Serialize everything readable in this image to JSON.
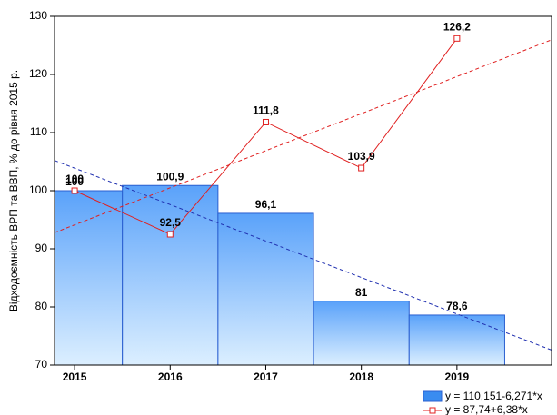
{
  "chart_data": {
    "type": "bar-line",
    "y_label": "Відходоємність ВРП та ВВП, % до рівня 2015 р.",
    "x": [
      2015,
      2016,
      2017,
      2018,
      2019
    ],
    "xlim": [
      2014.79,
      2019.99
    ],
    "xticks": [
      2015,
      2016,
      2017,
      2018,
      2019
    ],
    "ylim": [
      70,
      130
    ],
    "yticks": [
      70,
      80,
      90,
      100,
      110,
      120,
      130
    ],
    "series": [
      {
        "name": "bars",
        "kind": "bar",
        "color": "#2a5fd0",
        "values": [
          100,
          100.9,
          96.1,
          81,
          78.6
        ],
        "value_labels": [
          "100",
          "100,9",
          "96,1",
          "81",
          "78,6"
        ]
      },
      {
        "name": "line",
        "kind": "line",
        "color": "#e02020",
        "values": [
          100,
          92.5,
          111.8,
          103.9,
          126.2
        ],
        "value_labels": [
          "100",
          "92,5",
          "111,8",
          "103,9",
          "126,2"
        ]
      }
    ],
    "trendlines": [
      {
        "label": "y = 110,151-6,271*x",
        "intercept": 110.151,
        "slope": -6.271,
        "color": "#2030b0"
      },
      {
        "label": "y = 87,74+6,38*x",
        "intercept": 87.74,
        "slope": 6.38,
        "color": "#e02020"
      }
    ]
  }
}
